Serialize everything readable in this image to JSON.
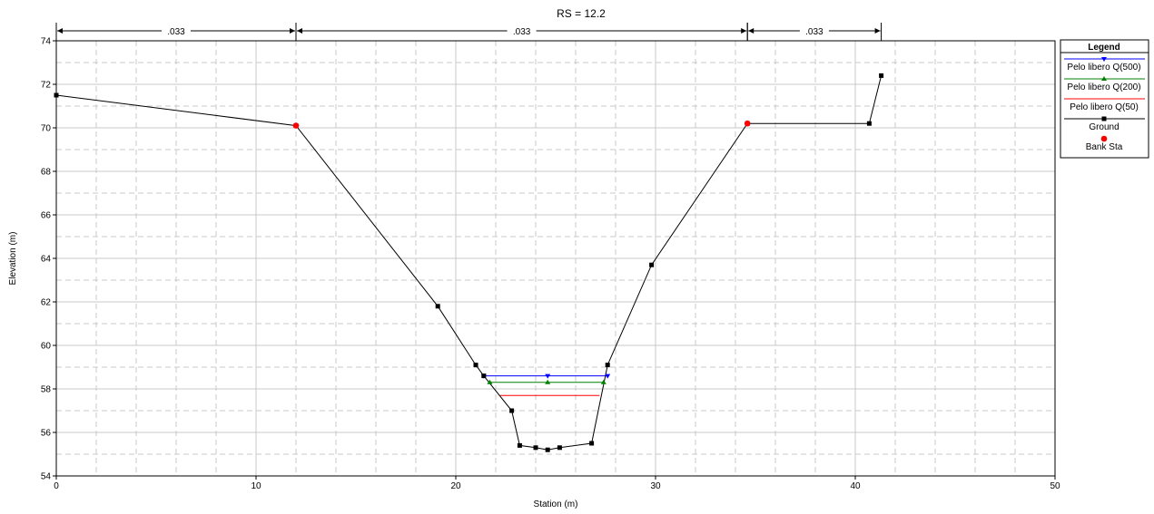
{
  "chart_data": {
    "type": "line",
    "title": "RS = 12.2",
    "xlabel": "Station (m)",
    "ylabel": "Elevation (m)",
    "xlim": [
      0,
      50
    ],
    "ylim": [
      54,
      74
    ],
    "x_ticks": [
      0,
      10,
      20,
      30,
      40,
      50
    ],
    "y_ticks": [
      54,
      56,
      58,
      60,
      62,
      64,
      66,
      68,
      70,
      72,
      74
    ],
    "grid": true,
    "legend_position": "right",
    "legend_title": "Legend",
    "manning_zones": [
      {
        "from": 0,
        "to": 12.0,
        "label": ".033"
      },
      {
        "from": 12.0,
        "to": 34.6,
        "label": ".033"
      },
      {
        "from": 34.6,
        "to": 41.3,
        "label": ".033"
      }
    ],
    "series": [
      {
        "name": "Pelo libero Q(500)",
        "color": "#0000ff",
        "marker": "triangle-down",
        "x": [
          21.4,
          24.6,
          27.6
        ],
        "y": [
          58.6,
          58.6,
          58.6
        ]
      },
      {
        "name": "Pelo libero Q(200)",
        "color": "#008000",
        "marker": "triangle-up",
        "x": [
          21.7,
          24.6,
          27.4
        ],
        "y": [
          58.3,
          58.3,
          58.3
        ]
      },
      {
        "name": "Pelo libero Q(50)",
        "color": "#ff0000",
        "marker": "none",
        "x": [
          22.2,
          27.2
        ],
        "y": [
          57.7,
          57.7
        ]
      },
      {
        "name": "Ground",
        "color": "#000000",
        "marker": "square",
        "x": [
          0,
          12.0,
          19.1,
          21.0,
          21.4,
          22.8,
          23.2,
          24.0,
          24.6,
          25.2,
          26.8,
          27.6,
          29.8,
          34.6,
          40.7,
          41.3
        ],
        "y": [
          71.5,
          70.1,
          61.8,
          59.1,
          58.6,
          57.0,
          55.4,
          55.3,
          55.2,
          55.3,
          55.5,
          59.1,
          63.7,
          70.2,
          70.2,
          72.4
        ]
      },
      {
        "name": "Bank Sta",
        "color": "#ff0000",
        "marker": "circle",
        "x": [
          12.0,
          34.6
        ],
        "y": [
          70.1,
          70.2
        ]
      }
    ]
  }
}
